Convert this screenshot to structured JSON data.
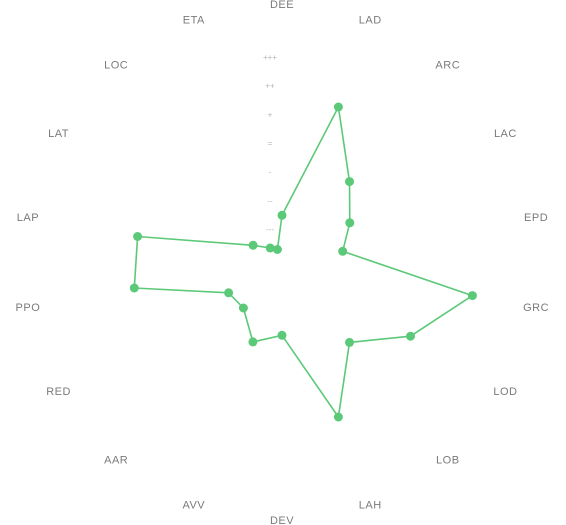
{
  "chart_data": {
    "type": "radar",
    "title": "",
    "categories": [
      "DEE",
      "LAD",
      "ARC",
      "LAC",
      "EPD",
      "GRC",
      "LOD",
      "LOB",
      "LAH",
      "DEV",
      "AVV",
      "AAR",
      "RED",
      "PPO",
      "LAP",
      "LAT",
      "LOC",
      "ETA"
    ],
    "tick_labels": [
      "+++",
      "++",
      "+",
      "=",
      "-",
      "--",
      "---"
    ],
    "series": [
      {
        "values": [
          0.28,
          0.99,
          0.63,
          0.47,
          0.37,
          1.16,
          0.89,
          0.63,
          0.99,
          0.44,
          0.51,
          0.36,
          0.37,
          0.9,
          0.88,
          0.2,
          0.11,
          0.08
        ]
      }
    ],
    "range": [
      0,
      1.2
    ],
    "grid": false,
    "legend": "none",
    "colors": {
      "series": "#5cc978",
      "axis_label": "#7a7a7a",
      "tick_label": "#b5b5b5"
    }
  }
}
